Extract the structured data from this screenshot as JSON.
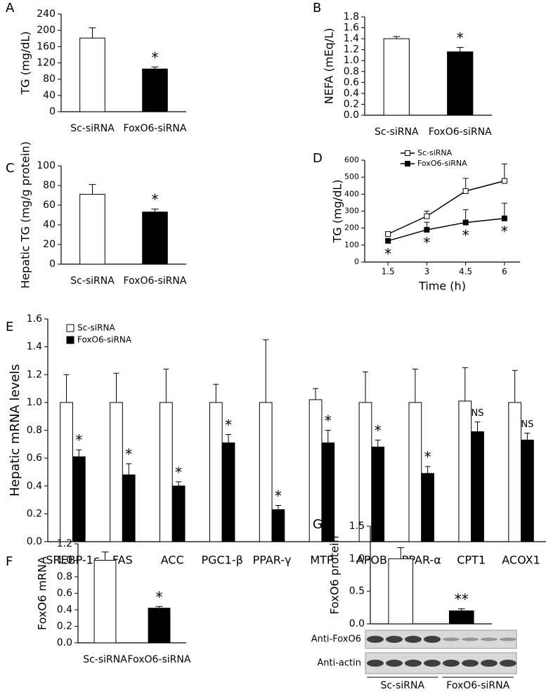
{
  "chart_data": [
    {
      "type": "bar",
      "panel": "A",
      "ylabel": "TG (mg/dL)",
      "categories": [
        "Sc-siRNA",
        "FoxO6-siRNA"
      ],
      "values": [
        181,
        105
      ],
      "errors": [
        25,
        5
      ],
      "colors": [
        "#ffffff",
        "#000000"
      ],
      "annotations": [
        null,
        "*"
      ],
      "ylim": [
        0,
        240
      ],
      "yticks": [
        0,
        40,
        80,
        120,
        160,
        200,
        240
      ]
    },
    {
      "type": "bar",
      "panel": "B",
      "ylabel": "NEFA (mEq/L)",
      "categories": [
        "Sc-siRNA",
        "FoxO6-siRNA"
      ],
      "values": [
        1.4,
        1.16
      ],
      "errors": [
        0.04,
        0.08
      ],
      "colors": [
        "#ffffff",
        "#000000"
      ],
      "annotations": [
        null,
        "*"
      ],
      "ylim": [
        0,
        1.8
      ],
      "yticks": [
        {
          "value": 0,
          "label": "0.0"
        },
        0.2,
        0.4,
        0.6,
        0.8,
        {
          "value": 1,
          "label": "1.0"
        },
        1.2,
        1.4,
        1.6,
        1.8
      ]
    },
    {
      "type": "bar",
      "panel": "C",
      "ylabel": "Hepatic TG (mg/g protein)",
      "categories": [
        "Sc-siRNA",
        "FoxO6-siRNA"
      ],
      "values": [
        71,
        53
      ],
      "errors": [
        10,
        3
      ],
      "colors": [
        "#ffffff",
        "#000000"
      ],
      "annotations": [
        null,
        "*"
      ],
      "ylim": [
        0,
        100
      ],
      "yticks": [
        0,
        20,
        40,
        60,
        80,
        100
      ]
    },
    {
      "type": "line",
      "panel": "D",
      "ylabel": "TG (mg/dL)",
      "xlabel": "Time (h)",
      "x": [
        1.5,
        3,
        4.5,
        6
      ],
      "series": [
        {
          "name": "Sc-siRNA",
          "color": "#000000",
          "fill": "#ffffff",
          "values": [
            165,
            270,
            418,
            478
          ],
          "errors": [
            8,
            30,
            75,
            100
          ]
        },
        {
          "name": "FoxO6-siRNA",
          "color": "#000000",
          "fill": "#000000",
          "values": [
            125,
            190,
            233,
            257
          ],
          "errors": [
            8,
            45,
            75,
            90
          ],
          "annotations": [
            "*",
            "*",
            "*",
            "*"
          ]
        }
      ],
      "xlim": [
        0.6,
        6.6
      ],
      "xticks": [
        1.5,
        3,
        4.5,
        6
      ],
      "ylim": [
        0,
        600
      ],
      "yticks": [
        0,
        100,
        200,
        300,
        400,
        500,
        600
      ],
      "legend": "upper left"
    },
    {
      "type": "grouped-bar",
      "panel": "E",
      "ylabel": "Hepatic mRNA levels",
      "categories": [
        "SREBP-1c",
        "FAS",
        "ACC",
        "PGC1-β",
        "PPAR-γ",
        "MTP",
        "APOB",
        "PPAR-α",
        "CPT1",
        "ACOX1"
      ],
      "series": [
        {
          "name": "Sc-siRNA",
          "color": "#ffffff",
          "values": [
            1.0,
            1.0,
            1.0,
            1.0,
            1.0,
            1.02,
            1.0,
            1.0,
            1.01,
            1.0
          ],
          "errors": [
            0.2,
            0.21,
            0.24,
            0.13,
            0.45,
            0.08,
            0.22,
            0.24,
            0.24,
            0.23
          ]
        },
        {
          "name": "FoxO6-siRNA",
          "color": "#000000",
          "values": [
            0.61,
            0.48,
            0.4,
            0.71,
            0.23,
            0.71,
            0.68,
            0.49,
            0.79,
            0.73
          ],
          "errors": [
            0.05,
            0.08,
            0.03,
            0.06,
            0.03,
            0.09,
            0.05,
            0.05,
            0.07,
            0.05
          ],
          "annotations": [
            "*",
            "*",
            "*",
            "*",
            "*",
            "*",
            "*",
            "*",
            "NS",
            "NS"
          ]
        }
      ],
      "ylim": [
        0,
        1.6
      ],
      "yticks": [
        {
          "value": 0,
          "label": "0.0"
        },
        0.2,
        0.4,
        0.6,
        0.8,
        {
          "value": 1,
          "label": "1.0"
        },
        1.2,
        1.4,
        1.6
      ],
      "legend": "upper left"
    },
    {
      "type": "bar",
      "panel": "F",
      "ylabel": "FoxO6 mRNA",
      "categories": [
        "Sc-siRNA",
        "FoxO6-siRNA"
      ],
      "values": [
        1.0,
        0.42
      ],
      "errors": [
        0.1,
        0.02
      ],
      "colors": [
        "#ffffff",
        "#000000"
      ],
      "annotations": [
        null,
        "*"
      ],
      "ylim": [
        0,
        1.2
      ],
      "yticks": [
        {
          "value": 0,
          "label": "0.0"
        },
        0.2,
        0.4,
        0.6,
        0.8,
        {
          "value": 1,
          "label": "1.0"
        },
        1.2
      ]
    },
    {
      "type": "bar",
      "panel": "G",
      "ylabel": "FoxO6 protein",
      "categories": [
        "Sc-siRNA",
        "FoxO6-siRNA"
      ],
      "values": [
        1.0,
        0.2
      ],
      "errors": [
        0.17,
        0.03
      ],
      "colors": [
        "#ffffff",
        "#000000"
      ],
      "annotations": [
        null,
        "**"
      ],
      "ylim": [
        0,
        1.5
      ],
      "yticks": [
        {
          "value": 0,
          "label": "0.0"
        },
        0.5,
        {
          "value": 1,
          "label": "1.0"
        },
        1.5
      ],
      "show_category_labels": false,
      "blot": {
        "rows": [
          "Anti-FoxO6",
          "Anti-actin"
        ],
        "groups": [
          "Sc-siRNA",
          "FoxO6-siRNA"
        ]
      }
    }
  ]
}
